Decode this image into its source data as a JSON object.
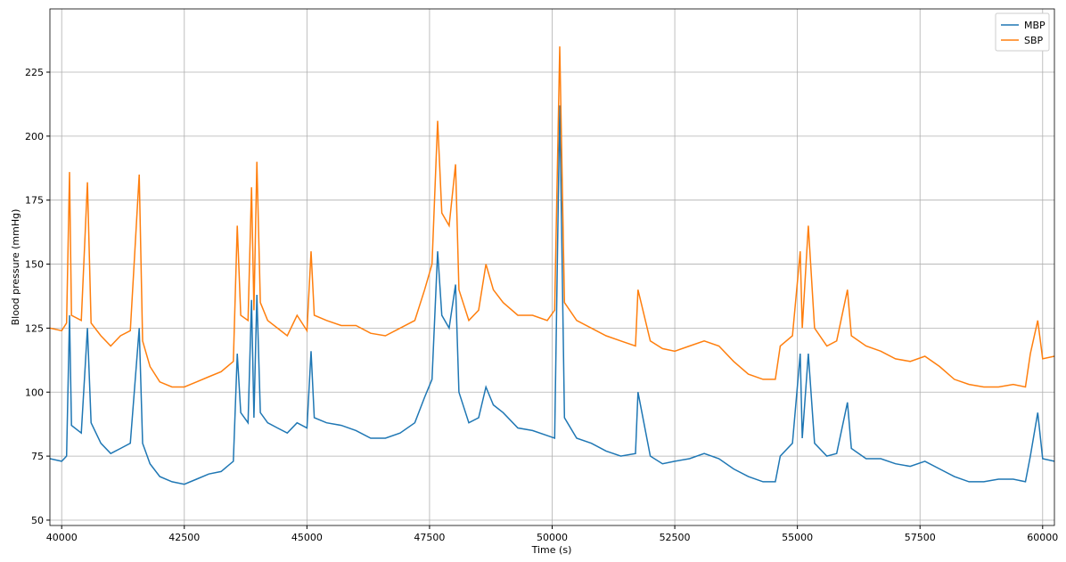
{
  "chart_data": {
    "type": "line",
    "x_label": "Time (s)",
    "y_label": "Blood pressure (mmHg)",
    "x": [
      39760,
      40000,
      40100,
      40160,
      40200,
      40400,
      40525,
      40600,
      40800,
      41000,
      41200,
      41400,
      41580,
      41650,
      41800,
      42000,
      42250,
      42500,
      42750,
      43000,
      43250,
      43500,
      43580,
      43650,
      43800,
      43870,
      43920,
      43980,
      44050,
      44200,
      44400,
      44600,
      44800,
      45000,
      45085,
      45150,
      45400,
      45700,
      46000,
      46300,
      46600,
      46900,
      47200,
      47400,
      47550,
      47665,
      47750,
      47900,
      48030,
      48100,
      48300,
      48500,
      48650,
      48800,
      49000,
      49300,
      49600,
      49900,
      50050,
      50154,
      50250,
      50500,
      50800,
      51100,
      51400,
      51700,
      51750,
      52000,
      52250,
      52500,
      52800,
      53100,
      53400,
      53700,
      54000,
      54300,
      54550,
      54650,
      54900,
      55058,
      55100,
      55222,
      55350,
      55600,
      55800,
      56020,
      56100,
      56400,
      56700,
      57000,
      57300,
      57600,
      57900,
      58200,
      58500,
      58800,
      59100,
      59400,
      59650,
      59750,
      59900,
      60000,
      60240
    ],
    "series": [
      {
        "name": "MBP",
        "color": "#1f77b4",
        "values": [
          74,
          73,
          75,
          130,
          87,
          84,
          125,
          88,
          80,
          76,
          78,
          80,
          125,
          80,
          72,
          67,
          65,
          64,
          66,
          68,
          69,
          73,
          115,
          92,
          88,
          136,
          90,
          138,
          92,
          88,
          86,
          84,
          88,
          86,
          116,
          90,
          88,
          87,
          85,
          82,
          82,
          84,
          88,
          98,
          105,
          155,
          130,
          125,
          142,
          100,
          88,
          90,
          102,
          95,
          92,
          86,
          85,
          83,
          82,
          212,
          90,
          82,
          80,
          77,
          75,
          76,
          100,
          75,
          72,
          73,
          74,
          76,
          74,
          70,
          67,
          65,
          65,
          75,
          80,
          115,
          82,
          115,
          80,
          75,
          76,
          96,
          78,
          74,
          74,
          72,
          71,
          73,
          70,
          67,
          65,
          65,
          66,
          66,
          65,
          75,
          92,
          74,
          73
        ]
      },
      {
        "name": "SBP",
        "color": "#ff7f0e",
        "values": [
          125,
          124,
          127,
          186,
          130,
          128,
          182,
          127,
          122,
          118,
          122,
          124,
          185,
          120,
          110,
          104,
          102,
          102,
          104,
          106,
          108,
          112,
          165,
          130,
          128,
          180,
          132,
          190,
          135,
          128,
          125,
          122,
          130,
          124,
          155,
          130,
          128,
          126,
          126,
          123,
          122,
          125,
          128,
          140,
          150,
          206,
          170,
          165,
          189,
          140,
          128,
          132,
          150,
          140,
          135,
          130,
          130,
          128,
          132,
          235,
          135,
          128,
          125,
          122,
          120,
          118,
          140,
          120,
          117,
          116,
          118,
          120,
          118,
          112,
          107,
          105,
          105,
          118,
          122,
          155,
          125,
          165,
          125,
          118,
          120,
          140,
          122,
          118,
          116,
          113,
          112,
          114,
          110,
          105,
          103,
          102,
          102,
          103,
          102,
          115,
          128,
          113,
          114
        ]
      }
    ],
    "xlim": [
      39760,
      60240
    ],
    "ylim": [
      47.9,
      249.7
    ],
    "xticks": [
      40000,
      42500,
      45000,
      47500,
      50000,
      52500,
      55000,
      57500,
      60000
    ],
    "yticks": [
      50,
      75,
      100,
      125,
      150,
      175,
      200,
      225
    ],
    "grid": true,
    "legend": "upper-right"
  }
}
